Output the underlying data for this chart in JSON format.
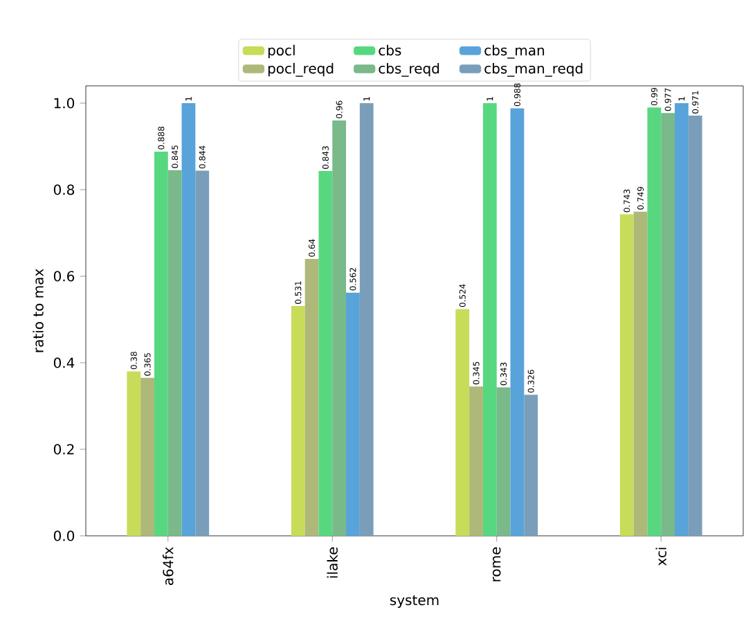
{
  "chart_data": {
    "type": "bar",
    "xlabel": "system",
    "ylabel": "ratio to max",
    "categories": [
      "a64fx",
      "ilake",
      "rome",
      "xci"
    ],
    "series": [
      {
        "name": "pocl",
        "color": "#c8dc5a",
        "values": [
          0.38,
          0.531,
          0.524,
          0.743
        ]
      },
      {
        "name": "pocl_reqd",
        "color": "#aeb878",
        "values": [
          0.365,
          0.64,
          0.345,
          0.749
        ]
      },
      {
        "name": "cbs",
        "color": "#57d880",
        "values": [
          0.888,
          0.843,
          1,
          0.99
        ]
      },
      {
        "name": "cbs_reqd",
        "color": "#79b98a",
        "values": [
          0.845,
          0.96,
          0.343,
          0.977
        ]
      },
      {
        "name": "cbs_man",
        "color": "#58a3d9",
        "values": [
          1,
          0.562,
          0.988,
          1
        ]
      },
      {
        "name": "cbs_man_reqd",
        "color": "#7a9eba",
        "values": [
          0.844,
          1,
          0.326,
          0.971
        ]
      }
    ],
    "ylim": [
      0,
      1.04
    ],
    "yticks": [
      {
        "value": 0,
        "label": "0.0"
      },
      {
        "value": 0.2,
        "label": "0.2"
      },
      {
        "value": 0.4,
        "label": "0.4"
      },
      {
        "value": 0.6,
        "label": "0.6"
      },
      {
        "value": 0.8,
        "label": "0.8"
      },
      {
        "value": 1.0,
        "label": "1.0"
      }
    ],
    "data_labels": true,
    "legend": "top",
    "grid": false
  }
}
